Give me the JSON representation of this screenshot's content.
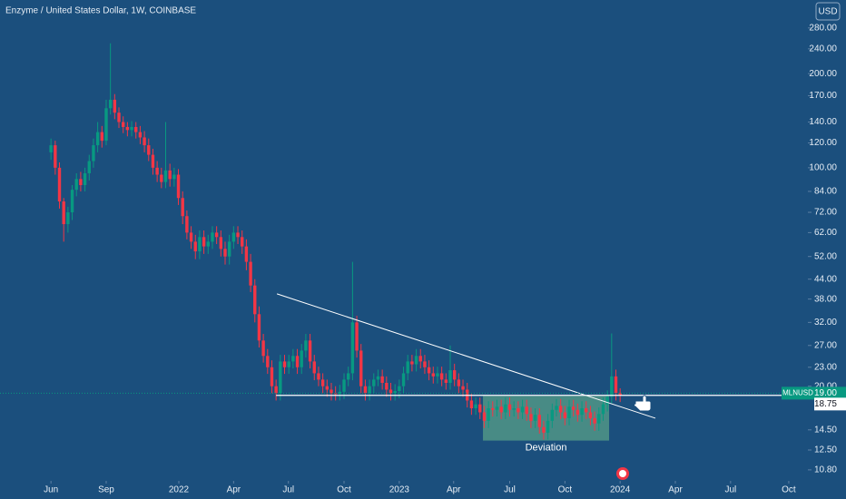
{
  "chart_data": {
    "type": "candlestick",
    "title": "Enzyme / United States Dollar, 1W, COINBASE",
    "currency": "USD",
    "symbol": "MLNUSD",
    "log_scale": true,
    "up_color": "#089981",
    "down_color": "#f23645",
    "ylim": [
      9.96,
      344
    ],
    "yticks": [
      {
        "value": 280,
        "label": "280.00"
      },
      {
        "value": 240,
        "label": "240.00"
      },
      {
        "value": 200,
        "label": "200.00"
      },
      {
        "value": 170,
        "label": "170.00"
      },
      {
        "value": 140,
        "label": "140.00"
      },
      {
        "value": 120,
        "label": "120.00"
      },
      {
        "value": 100,
        "label": "100.00"
      },
      {
        "value": 84,
        "label": "84.00"
      },
      {
        "value": 72,
        "label": "72.00"
      },
      {
        "value": 62,
        "label": "62.00"
      },
      {
        "value": 52,
        "label": "52.00"
      },
      {
        "value": 44,
        "label": "44.00"
      },
      {
        "value": 38,
        "label": "38.00"
      },
      {
        "value": 32,
        "label": "32.00"
      },
      {
        "value": 27,
        "label": "27.00"
      },
      {
        "value": 23,
        "label": "23.00"
      },
      {
        "value": 20,
        "label": "20.00"
      },
      {
        "value": 14.5,
        "label": "14.50"
      },
      {
        "value": 12.5,
        "label": "12.50"
      },
      {
        "value": 10.8,
        "label": "10.80"
      }
    ],
    "xlim": [
      -12,
      178.2
    ],
    "xticks": [
      {
        "value": 0,
        "label": "Jun"
      },
      {
        "value": 13,
        "label": "Sep"
      },
      {
        "value": 30.1,
        "label": "2022"
      },
      {
        "value": 43,
        "label": "Apr"
      },
      {
        "value": 55.9,
        "label": "Jul"
      },
      {
        "value": 69,
        "label": "Oct"
      },
      {
        "value": 82,
        "label": "2023"
      },
      {
        "value": 94.8,
        "label": "Apr"
      },
      {
        "value": 108,
        "label": "Jul"
      },
      {
        "value": 121,
        "label": "Oct"
      },
      {
        "value": 134,
        "label": "2024"
      },
      {
        "value": 147,
        "label": "Apr"
      },
      {
        "value": 160,
        "label": "Jul"
      },
      {
        "value": 173.7,
        "label": "Oct"
      }
    ],
    "open": [
      112,
      118,
      100,
      78,
      66,
      72,
      85,
      92,
      88,
      96,
      105,
      118,
      130,
      122,
      155,
      165,
      150,
      140,
      135,
      132,
      135,
      130,
      125,
      118,
      110,
      100,
      95,
      90,
      98,
      92,
      95,
      80,
      70,
      62,
      58,
      54,
      60,
      56,
      58,
      62,
      60,
      55,
      52,
      58,
      62,
      60,
      56,
      50,
      42,
      34,
      28,
      25,
      23,
      20,
      19,
      24,
      23,
      24,
      25,
      23,
      26,
      28,
      24,
      22,
      21,
      20,
      19.5,
      19,
      18.9,
      19.2,
      21,
      22,
      32,
      26,
      20,
      19,
      20,
      21,
      21.5,
      20.5,
      19.5,
      19,
      19.3,
      20,
      22,
      24,
      23.5,
      25,
      24,
      23,
      22,
      21.5,
      22,
      21,
      20.5,
      22.5,
      21,
      20,
      19.5,
      18,
      17,
      17.5,
      16.5,
      15.5,
      17,
      16.8,
      17.2,
      16.5,
      17.5,
      16.8,
      17,
      16.5,
      17.2,
      16.3,
      15.5,
      16.2,
      14.8,
      14.2,
      15.5,
      16.8,
      17.3,
      16.5,
      15.8,
      17.2,
      16.8,
      16.2,
      17,
      16.5,
      15.8,
      15.2,
      16.3,
      17.5,
      18.5,
      21.5,
      19
    ],
    "high": [
      124,
      122,
      104,
      80,
      75,
      88,
      96,
      97,
      100,
      110,
      124,
      140,
      136,
      165,
      250,
      172,
      156,
      146,
      140,
      141,
      140,
      136,
      131,
      124,
      115,
      105,
      100,
      140,
      103,
      100,
      99,
      84,
      73,
      65,
      61,
      63,
      63,
      61,
      65,
      65,
      63,
      58,
      61,
      65,
      65,
      63,
      59,
      53,
      44,
      36,
      29.4,
      26.3,
      24.2,
      21,
      25.2,
      25.2,
      25.2,
      26.3,
      26.3,
      27.3,
      29.4,
      29.4,
      25.2,
      23.1,
      22,
      21,
      20.5,
      20,
      20.2,
      22,
      23.1,
      50,
      33.6,
      27.3,
      21,
      21,
      22,
      22.6,
      22.6,
      21.5,
      20.5,
      20.3,
      21,
      23.1,
      25.2,
      25.2,
      26.3,
      26.3,
      25.2,
      24.2,
      23.1,
      23.1,
      23.1,
      22,
      27,
      23.6,
      22,
      21,
      20.5,
      18.9,
      18.4,
      18.4,
      17.3,
      17.9,
      17.9,
      18.1,
      18.1,
      18.4,
      18.4,
      17.9,
      17.9,
      18.1,
      18.1,
      17.1,
      17,
      17,
      15.5,
      16.3,
      17.6,
      18.2,
      18.2,
      17.3,
      18.1,
      18.1,
      17.6,
      17.9,
      17.9,
      17.3,
      16.6,
      17.1,
      18.4,
      19.4,
      29.5,
      22.6,
      19.7
    ],
    "low": [
      106,
      95,
      74,
      58,
      62,
      68,
      81,
      84,
      84,
      91,
      100,
      112,
      116,
      118,
      148,
      143,
      134,
      129,
      126,
      126,
      124,
      119,
      112,
      105,
      95,
      90,
      86,
      86,
      87,
      87,
      76,
      66,
      59,
      55,
      51,
      51,
      53,
      53,
      55,
      57,
      52,
      49,
      49,
      55,
      57,
      53,
      47,
      40,
      32,
      26.6,
      23.8,
      21.9,
      19,
      18,
      18,
      21.9,
      21.9,
      22.8,
      21.9,
      21.9,
      24.7,
      22.8,
      20.9,
      20,
      19,
      18.5,
      18,
      18,
      18,
      18.2,
      20,
      20.9,
      24.7,
      19,
      18,
      18,
      19,
      20,
      19.5,
      18.5,
      18,
      18,
      18.3,
      19,
      20.9,
      22.3,
      22.3,
      22.8,
      21.9,
      20.9,
      20.4,
      20.4,
      20,
      19.5,
      19.5,
      20,
      19,
      18.5,
      17.1,
      16.2,
      16.2,
      15.7,
      14.7,
      14.7,
      16,
      16,
      15.7,
      15.7,
      16,
      16,
      15.7,
      15.7,
      15.5,
      14.7,
      14.7,
      14.1,
      13.5,
      13.5,
      14.7,
      16,
      15.7,
      15,
      15,
      16,
      15.4,
      15.4,
      15.7,
      15,
      14.4,
      14.4,
      15.5,
      16.6,
      17.6,
      18,
      17.8
    ],
    "close": [
      118,
      100,
      78,
      66,
      72,
      85,
      92,
      88,
      96,
      105,
      118,
      130,
      122,
      155,
      165,
      150,
      140,
      135,
      132,
      135,
      130,
      125,
      118,
      110,
      100,
      95,
      90,
      98,
      92,
      95,
      80,
      70,
      62,
      58,
      54,
      60,
      56,
      58,
      62,
      60,
      55,
      52,
      58,
      62,
      60,
      56,
      50,
      42,
      34,
      28,
      25,
      23,
      20,
      19,
      24,
      23,
      24,
      25,
      23,
      26,
      28,
      24,
      22,
      21,
      20,
      19.5,
      19,
      18.9,
      19.2,
      21,
      22,
      32,
      26,
      20,
      19,
      20,
      21,
      21.5,
      20.5,
      19.5,
      19,
      19.3,
      20,
      22,
      24,
      23.5,
      25,
      24,
      23,
      22,
      21.5,
      22,
      21,
      20.5,
      22.5,
      21,
      20,
      19.5,
      18,
      17,
      17.5,
      16.5,
      15.5,
      17,
      16.8,
      17.2,
      16.5,
      17.5,
      16.8,
      17,
      16.5,
      17.2,
      16.3,
      15.5,
      16.2,
      14.8,
      14.2,
      15.5,
      16.8,
      17.3,
      16.5,
      15.8,
      17.2,
      16.8,
      16.2,
      17,
      16.5,
      15.8,
      15.2,
      16.3,
      17.5,
      18.5,
      21.5,
      19,
      18.75
    ],
    "trendline": {
      "x": [
        53.2,
        142.3
      ],
      "y": [
        39.5,
        15.8
      ]
    },
    "support": {
      "x": [
        53,
        178.2
      ],
      "y": 18.7
    },
    "deviation_box": {
      "x": [
        101.7,
        131.4
      ],
      "y": [
        13.4,
        18.6
      ],
      "label": "Deviation"
    },
    "price_line": {
      "value": 19,
      "label": "19.00"
    },
    "last_price": 18.75
  }
}
